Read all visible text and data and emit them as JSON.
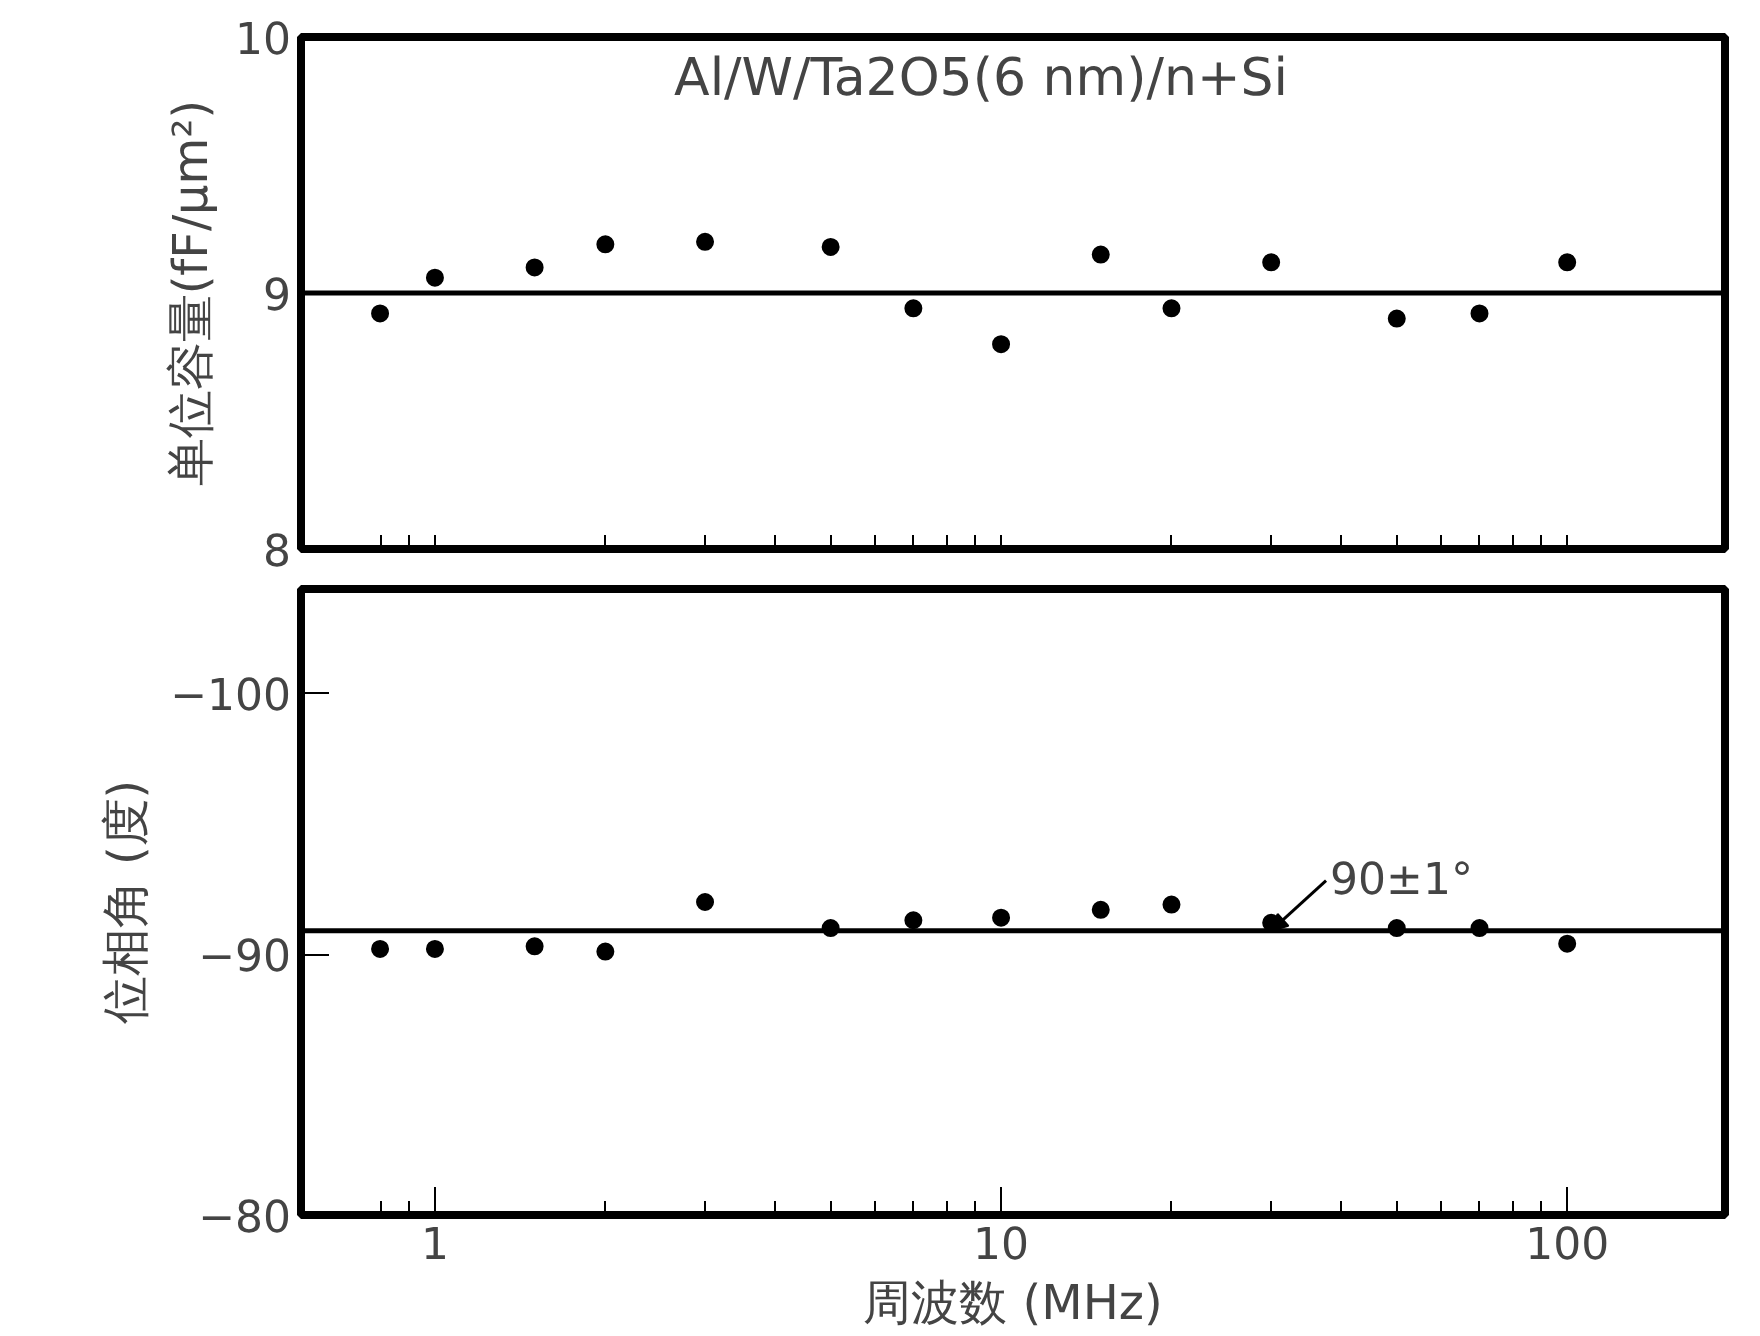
{
  "chart_data": [
    {
      "type": "scatter",
      "title": "Al/W/Ta2O5(6 nm)/n+Si",
      "ylabel": "单位容量(fF/μm²)",
      "x": [
        0.8,
        1.0,
        1.5,
        2,
        3,
        5,
        7,
        10,
        15,
        20,
        30,
        50,
        70,
        100
      ],
      "values": [
        8.92,
        9.06,
        9.1,
        9.19,
        9.2,
        9.18,
        8.94,
        8.8,
        9.15,
        8.94,
        9.12,
        8.9,
        8.92,
        9.12
      ],
      "color": "#000000",
      "marker": "circle",
      "log": "x",
      "grid": false,
      "tick_labels": "y",
      "xlim": [
        0.58,
        190
      ],
      "ylim": [
        8,
        10
      ],
      "yticks": [
        8,
        9,
        10
      ],
      "xticks": [
        {
          "value": 0.8,
          "label": null
        },
        {
          "value": 0.9,
          "label": null
        },
        {
          "value": 1,
          "label": null
        },
        {
          "value": 2,
          "label": null
        },
        {
          "value": 3,
          "label": null
        },
        {
          "value": 4,
          "label": null
        },
        {
          "value": 5,
          "label": null
        },
        {
          "value": 6,
          "label": null
        },
        {
          "value": 7,
          "label": null
        },
        {
          "value": 8,
          "label": null
        },
        {
          "value": 9,
          "label": null
        },
        {
          "value": 10,
          "label": null
        },
        {
          "value": 20,
          "label": null
        },
        {
          "value": 30,
          "label": null
        },
        {
          "value": 40,
          "label": null
        },
        {
          "value": 50,
          "label": null
        },
        {
          "value": 60,
          "label": null
        },
        {
          "value": 70,
          "label": null
        },
        {
          "value": 80,
          "label": null
        },
        {
          "value": 90,
          "label": null
        },
        {
          "value": 100,
          "label": null
        }
      ],
      "ref_lines": [
        {
          "axis": "y",
          "value": 9,
          "label": null,
          "color": "#000000"
        }
      ]
    },
    {
      "type": "scatter",
      "ylabel": "位相角 (度)",
      "xlabel": "周波数 (MHz)",
      "x": [
        0.8,
        1.0,
        1.5,
        2,
        3,
        5,
        7,
        10,
        15,
        20,
        30,
        50,
        70,
        100
      ],
      "values": [
        -90.2,
        -90.2,
        -90.3,
        -90.1,
        -92.0,
        -91.0,
        -91.3,
        -91.4,
        -91.7,
        -91.9,
        -91.2,
        -91.0,
        -91.0,
        -90.4
      ],
      "color": "#000000",
      "marker": "circle",
      "log": "x",
      "grid": false,
      "xlim": [
        0.58,
        190
      ],
      "ylim": [
        -80,
        -104
      ],
      "yticks": [
        -100,
        -90,
        -80
      ],
      "xticks": [
        {
          "value": 0.8,
          "label": null
        },
        {
          "value": 0.9,
          "label": null
        },
        1,
        {
          "value": 2,
          "label": null
        },
        {
          "value": 3,
          "label": null
        },
        {
          "value": 4,
          "label": null
        },
        {
          "value": 5,
          "label": null
        },
        {
          "value": 6,
          "label": null
        },
        {
          "value": 7,
          "label": null
        },
        {
          "value": 8,
          "label": null
        },
        {
          "value": 9,
          "label": null
        },
        10,
        {
          "value": 20,
          "label": null
        },
        {
          "value": 30,
          "label": null
        },
        {
          "value": 40,
          "label": null
        },
        {
          "value": 50,
          "label": null
        },
        {
          "value": 60,
          "label": null
        },
        {
          "value": 70,
          "label": null
        },
        {
          "value": 80,
          "label": null
        },
        {
          "value": 90,
          "label": null
        },
        100
      ],
      "ref_lines": [
        {
          "axis": "y",
          "value": -90.9,
          "label": null,
          "color": "#000000"
        }
      ],
      "annotations": [
        {
          "text": "90±1°",
          "x": 30,
          "y": -90.9
        }
      ]
    }
  ]
}
